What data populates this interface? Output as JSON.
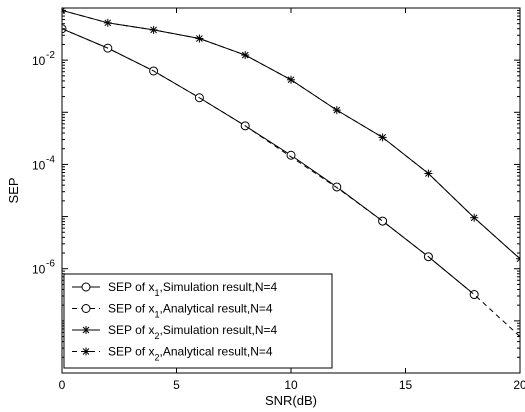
{
  "chart_data": {
    "type": "line",
    "xlabel": "SNR(dB)",
    "ylabel": "SEP",
    "xlim": [
      0,
      20
    ],
    "ylim_log10": [
      -8,
      -1
    ],
    "y_scale": "log",
    "grid": false,
    "legend_position": "bottom-left",
    "x_ticks": [
      0,
      5,
      10,
      15,
      20
    ],
    "x_tick_labels": [
      "0",
      "5",
      "10",
      "15",
      "20"
    ],
    "y_tick_exponents": [
      -2,
      -4,
      -6
    ],
    "y_tick_base": "10",
    "y_tick_labels": [
      "-2",
      "-4",
      "-6"
    ],
    "x": [
      0,
      2,
      4,
      6,
      8,
      10,
      12,
      14,
      16,
      18,
      20
    ],
    "series": [
      {
        "name": "SEP of x",
        "subscript": "1",
        "name_suffix": ",Simulation result,N=4",
        "marker": "circle",
        "line": "solid",
        "x": [
          0,
          2,
          4,
          6,
          8,
          10,
          12,
          14,
          16,
          18
        ],
        "values": [
          0.04,
          0.017,
          0.0062,
          0.0019,
          0.00055,
          0.00015,
          3.7e-05,
          8.2e-06,
          1.7e-06,
          3.2e-07
        ]
      },
      {
        "name": "SEP of x",
        "subscript": "1",
        "name_suffix": ",Analytical result,N=4",
        "marker": "circle",
        "line": "dashed",
        "x": [
          0,
          2,
          4,
          6,
          8,
          10,
          12,
          14,
          16,
          18,
          20
        ],
        "values": [
          0.04,
          0.017,
          0.0062,
          0.0019,
          0.00055,
          0.00014,
          3.6e-05,
          8.2e-06,
          1.7e-06,
          3.2e-07,
          5e-08
        ]
      },
      {
        "name": "SEP of x",
        "subscript": "2",
        "name_suffix": ",Simulation result,N=4",
        "marker": "star",
        "line": "solid",
        "x": [
          0,
          2,
          4,
          6,
          8,
          10,
          12,
          14,
          16,
          18,
          20
        ],
        "values": [
          0.09,
          0.052,
          0.038,
          0.026,
          0.0125,
          0.0042,
          0.0011,
          0.00033,
          6.7e-05,
          9.5e-06,
          1.55e-06
        ]
      },
      {
        "name": "SEP of x",
        "subscript": "2",
        "name_suffix": ",Analytical result,N=4",
        "marker": "star",
        "line": "dashed",
        "x": [
          0,
          2,
          4,
          6,
          8,
          10,
          12,
          14,
          16,
          18,
          20
        ],
        "values": [
          0.09,
          0.052,
          0.038,
          0.026,
          0.0125,
          0.0042,
          0.0011,
          0.00033,
          6.7e-05,
          9.5e-06,
          1.55e-06
        ]
      }
    ]
  }
}
